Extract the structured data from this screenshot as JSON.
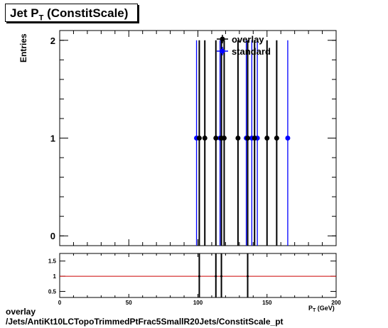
{
  "title": {
    "main": "Jet P",
    "sub": "T",
    "suffix": "(ConstitScale)"
  },
  "footer": {
    "line1": "overlay",
    "line2": "/Jets/AntiKt10LCTopoTrimmedPtFrac5SmallR20Jets/ConstitScale_pt"
  },
  "chart_data": [
    {
      "type": "scatter",
      "title": "Jet P_T (ConstitScale)",
      "ylabel": "Entries",
      "xlim": [
        0,
        200
      ],
      "ylim": [
        -0.1,
        2.1
      ],
      "yticks": [
        "0",
        "1",
        "2"
      ],
      "legend_position": "top-center",
      "series": [
        {
          "name": "overlay",
          "color": "#000000",
          "x": [
            101,
            105,
            113,
            117,
            119,
            129,
            136,
            141,
            150,
            157
          ],
          "y": [
            1,
            1,
            1,
            1,
            1,
            1,
            1,
            1,
            1,
            1
          ]
        },
        {
          "name": "standard",
          "color": "#0000ff",
          "x": [
            99,
            116,
            135,
            139,
            143,
            165
          ],
          "y": [
            1,
            1,
            1,
            1,
            1,
            1
          ]
        }
      ]
    },
    {
      "type": "scatter",
      "ylim": [
        0.3,
        1.75
      ],
      "xticks": [
        "0",
        "50",
        "100",
        "150",
        "200"
      ],
      "yticks": [
        "0.5",
        "1",
        "1.5"
      ],
      "reference_line": 1,
      "reference_color": "#cc0000",
      "ratio_x": [
        101,
        113,
        117,
        136
      ],
      "ratio_y": [
        1,
        1,
        1,
        1
      ],
      "x_axis_partial_label": "P_T (GeV)"
    }
  ]
}
